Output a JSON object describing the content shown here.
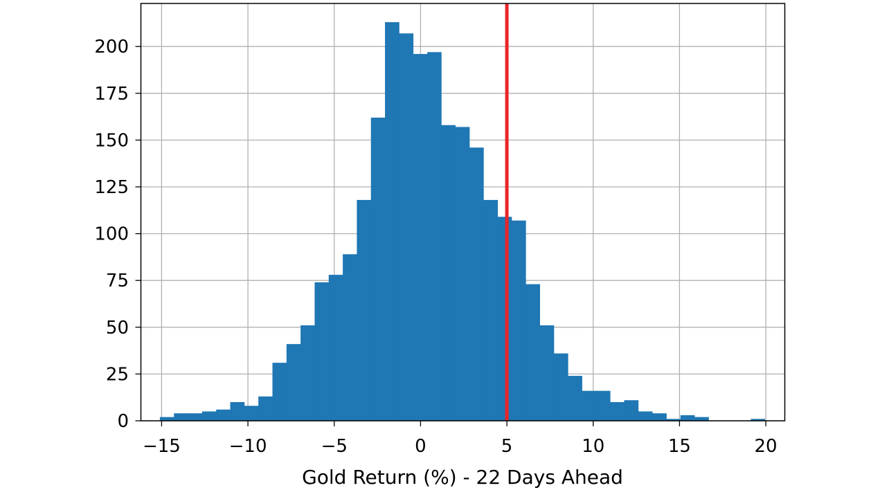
{
  "chart_data": {
    "type": "bar",
    "subtype": "histogram",
    "title": "",
    "xlabel": "Gold Return (%) - 22 Days Ahead",
    "ylabel": "",
    "xlim": [
      -16.2,
      21.1
    ],
    "ylim": [
      0,
      223
    ],
    "grid": true,
    "xticks": [
      -15,
      -10,
      -5,
      0,
      5,
      10,
      15,
      20
    ],
    "xtick_labels": [
      "−15",
      "−10",
      "−5",
      "0",
      "5",
      "10",
      "15",
      "20"
    ],
    "yticks": [
      0,
      25,
      50,
      75,
      100,
      125,
      150,
      175,
      200
    ],
    "ytick_labels": [
      "0",
      "25",
      "50",
      "75",
      "100",
      "125",
      "150",
      "175",
      "200"
    ],
    "bin_start": -15.1,
    "bin_width": 0.815,
    "counts": [
      2,
      4,
      4,
      5,
      6,
      10,
      8,
      13,
      31,
      41,
      51,
      74,
      78,
      89,
      118,
      162,
      213,
      207,
      196,
      197,
      158,
      157,
      146,
      118,
      109,
      107,
      73,
      51,
      36,
      24,
      16,
      16,
      10,
      11,
      5,
      4,
      1,
      3,
      2,
      0,
      0,
      0,
      1
    ],
    "bar_color": "#1f77b4",
    "reference_line": {
      "x": 5,
      "color": "#e8262a"
    }
  }
}
